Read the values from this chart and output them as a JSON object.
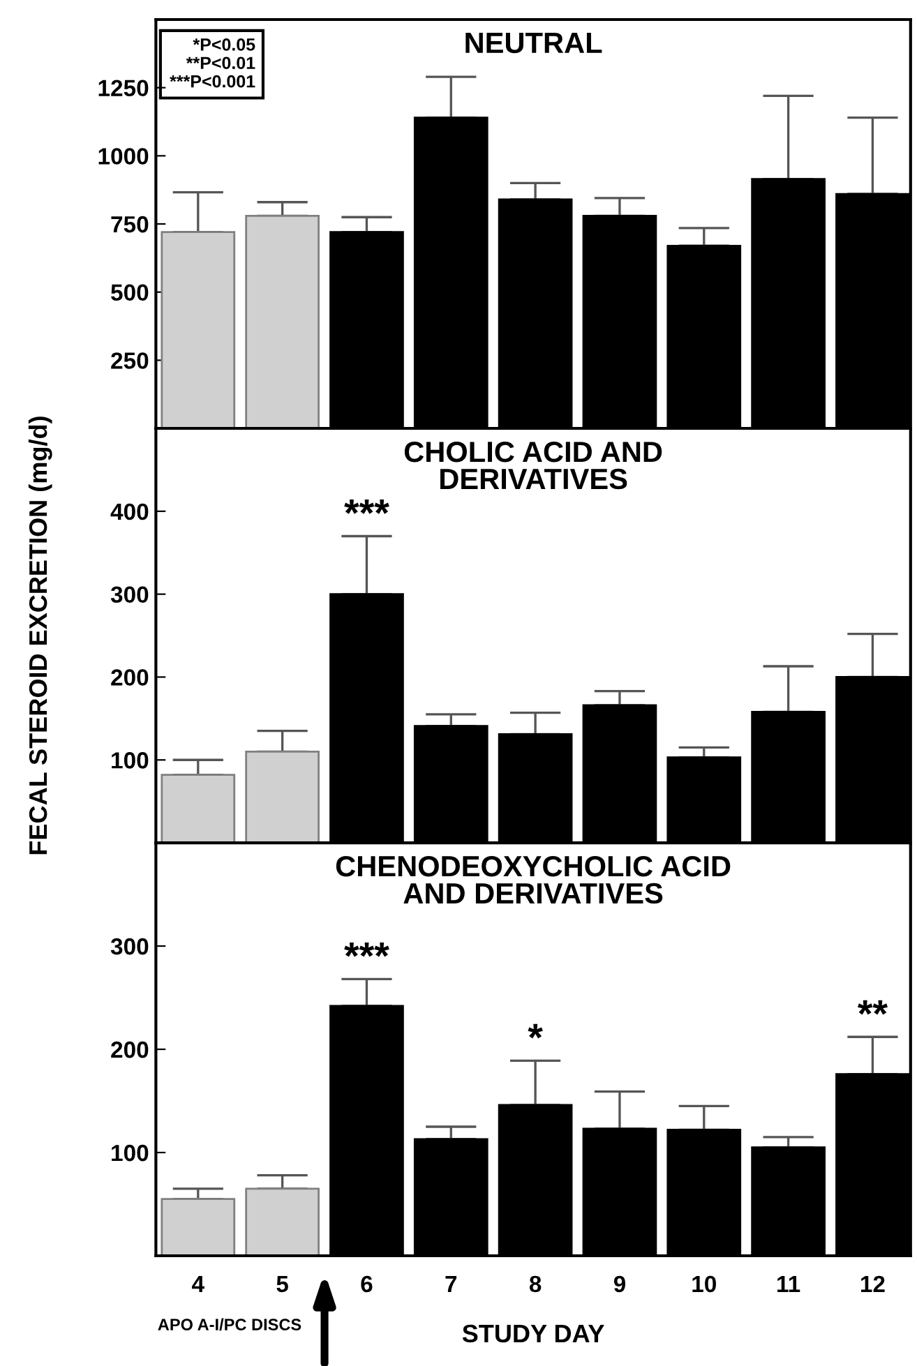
{
  "chart_data": [
    {
      "type": "bar",
      "title": "NEUTRAL",
      "categories": [
        "4",
        "5",
        "6",
        "7",
        "8",
        "9",
        "10",
        "11",
        "12"
      ],
      "values": [
        720,
        780,
        720,
        1140,
        840,
        780,
        670,
        915,
        860
      ],
      "errors": [
        [
          720,
          866
        ],
        [
          780,
          830
        ],
        [
          720,
          775
        ],
        [
          1140,
          1290
        ],
        [
          840,
          900
        ],
        [
          780,
          845
        ],
        [
          670,
          735
        ],
        [
          915,
          1220
        ],
        [
          860,
          1140
        ]
      ],
      "colors": [
        "#d0d0d0",
        "#d0d0d0",
        "#000000",
        "#000000",
        "#000000",
        "#000000",
        "#000000",
        "#000000",
        "#000000"
      ],
      "ylim": [
        0,
        1500
      ],
      "yticks": [
        250,
        500,
        750,
        1000,
        1250
      ],
      "tick_labels": "y",
      "grid": false,
      "annotations": [
        "*P<0.05",
        "**P<0.01",
        "***P<0.001"
      ]
    },
    {
      "type": "bar",
      "title": "CHOLIC ACID AND\nDERIVATIVES",
      "ylabel": "FECAL STEROID EXCRETION (mg/d)",
      "categories": [
        "4",
        "5",
        "6",
        "7",
        "8",
        "9",
        "10",
        "11",
        "12"
      ],
      "values": [
        82,
        110,
        300,
        141,
        131,
        166,
        103,
        158,
        200
      ],
      "errors": [
        [
          82,
          100
        ],
        [
          110,
          135
        ],
        [
          300,
          370
        ],
        [
          141,
          155
        ],
        [
          131,
          157
        ],
        [
          166,
          183
        ],
        [
          103,
          115
        ],
        [
          158,
          213
        ],
        [
          200,
          252
        ]
      ],
      "colors": [
        "#d0d0d0",
        "#d0d0d0",
        "#000000",
        "#000000",
        "#000000",
        "#000000",
        "#000000",
        "#000000",
        "#000000"
      ],
      "ylim": [
        0,
        500
      ],
      "yticks": [
        100,
        200,
        300,
        400
      ],
      "tick_labels": "y",
      "grid": false,
      "annotations": [
        {
          "text": "***",
          "x": "6",
          "y": 370
        }
      ]
    },
    {
      "type": "bar",
      "title": "CHENODEOXYCHOLIC ACID\nAND DERIVATIVES",
      "xlabel": "STUDY DAY",
      "categories": [
        "4",
        "5",
        "6",
        "7",
        "8",
        "9",
        "10",
        "11",
        "12"
      ],
      "values": [
        55,
        65,
        242,
        113,
        146,
        123,
        122,
        105,
        176
      ],
      "errors": [
        [
          55,
          65
        ],
        [
          65,
          78
        ],
        [
          242,
          268
        ],
        [
          113,
          125
        ],
        [
          146,
          189
        ],
        [
          123,
          159
        ],
        [
          122,
          145
        ],
        [
          105,
          115
        ],
        [
          176,
          212
        ]
      ],
      "colors": [
        "#d0d0d0",
        "#d0d0d0",
        "#000000",
        "#000000",
        "#000000",
        "#000000",
        "#000000",
        "#000000",
        "#000000"
      ],
      "ylim": [
        0,
        400
      ],
      "yticks": [
        100,
        200,
        300
      ],
      "grid": false,
      "annotations": [
        {
          "text": "***",
          "x": "6",
          "y": 268
        },
        {
          "text": "*",
          "x": "8",
          "y": 189
        },
        {
          "text": "**",
          "x": "12",
          "y": 212
        },
        "APO A-I/PC DISCS"
      ]
    }
  ]
}
